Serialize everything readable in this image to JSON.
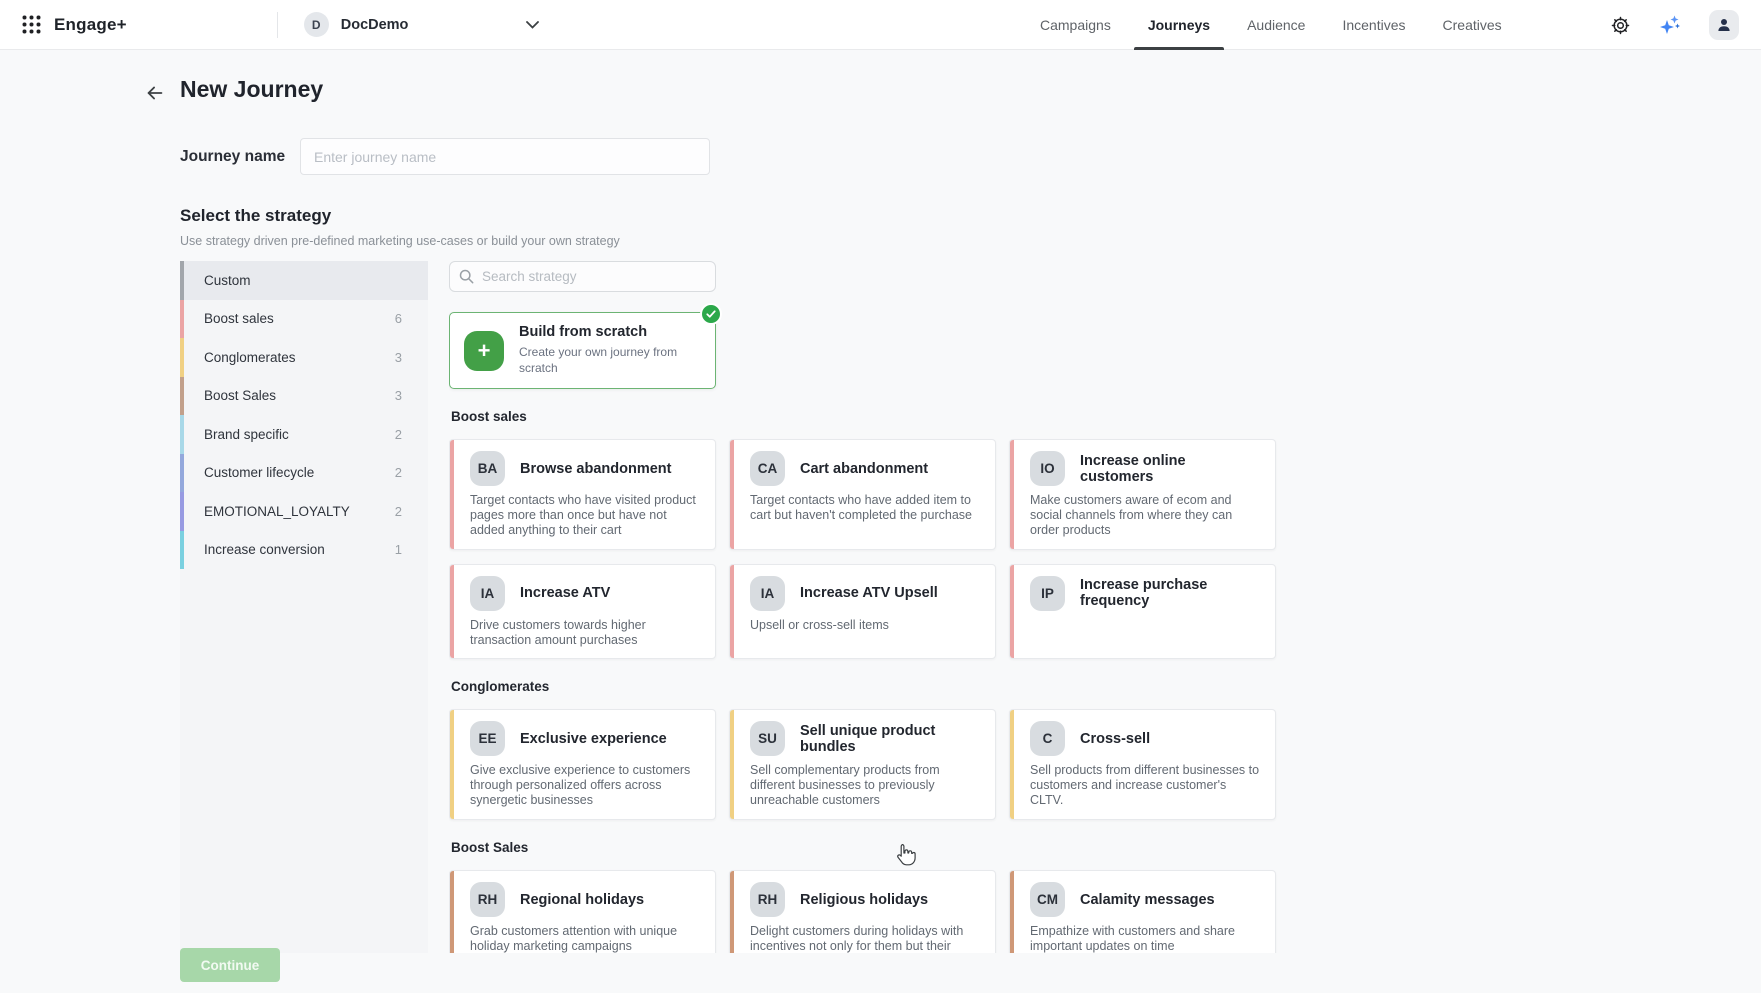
{
  "topbar": {
    "logo": "Engage+",
    "workspace": {
      "initial": "D",
      "name": "DocDemo"
    },
    "nav": [
      {
        "label": "Campaigns",
        "active": false
      },
      {
        "label": "Journeys",
        "active": true
      },
      {
        "label": "Audience",
        "active": false
      },
      {
        "label": "Incentives",
        "active": false
      },
      {
        "label": "Creatives",
        "active": false
      }
    ]
  },
  "page": {
    "title": "New Journey",
    "journey_name_label": "Journey name",
    "journey_name_placeholder": "Enter journey name",
    "journey_name_value": "",
    "strategy_heading": "Select the strategy",
    "strategy_subheading": "Use strategy driven pre-defined marketing use-cases or build your own strategy",
    "search_placeholder": "Search strategy",
    "continue_label": "Continue"
  },
  "colors": {
    "selected_green": "#2ba84a",
    "build_icon_green": "#43a047",
    "continue_green": "#a7d7a9",
    "active_tab_underline": "#3c4043",
    "sparkle_blue": "#4285f4"
  },
  "sidebar_categories": [
    {
      "label": "Custom",
      "count": "",
      "accent": "#a2a6ab",
      "selected": true
    },
    {
      "label": "Boost sales",
      "count": "6",
      "accent": "#eba4a4",
      "selected": false
    },
    {
      "label": "Conglomerates",
      "count": "3",
      "accent": "#f0d083",
      "selected": false
    },
    {
      "label": "Boost Sales",
      "count": "3",
      "accent": "#c2a08b",
      "selected": false
    },
    {
      "label": "Brand specific",
      "count": "2",
      "accent": "#a8d8e8",
      "selected": false
    },
    {
      "label": "Customer lifecycle",
      "count": "2",
      "accent": "#93a8dc",
      "selected": false
    },
    {
      "label": "EMOTIONAL_LOYALTY",
      "count": "2",
      "accent": "#979ae2",
      "selected": false
    },
    {
      "label": "Increase conversion",
      "count": "1",
      "accent": "#7ad0e0",
      "selected": false
    }
  ],
  "build_card": {
    "title": "Build from scratch",
    "description": "Create your own journey from scratch",
    "selected": true
  },
  "sections": [
    {
      "heading": "Boost sales",
      "accent": "#eba4a4",
      "cards": [
        {
          "initials": "BA",
          "title": "Browse abandonment",
          "description": "Target contacts who have visited product pages more than once but have not added anything to their cart"
        },
        {
          "initials": "CA",
          "title": "Cart abandonment",
          "description": "Target contacts who have added item to cart but haven't completed the purchase"
        },
        {
          "initials": "IO",
          "title": "Increase online customers",
          "description": "Make customers aware of ecom and social channels from where they can order products"
        },
        {
          "initials": "IA",
          "title": "Increase ATV",
          "description": "Drive customers towards higher transaction amount purchases"
        },
        {
          "initials": "IA",
          "title": "Increase ATV Upsell",
          "description": "Upsell or cross-sell items"
        },
        {
          "initials": "IP",
          "title": "Increase purchase frequency",
          "description": ""
        }
      ]
    },
    {
      "heading": "Conglomerates",
      "accent": "#f0d083",
      "cards": [
        {
          "initials": "EE",
          "title": "Exclusive experience",
          "description": "Give exclusive experience to customers through personalized offers across synergetic businesses"
        },
        {
          "initials": "SU",
          "title": "Sell unique product bundles",
          "description": "Sell complementary products from different businesses to previously unreachable customers"
        },
        {
          "initials": "C",
          "title": "Cross-sell",
          "description": "Sell products from different businesses to customers and increase customer's CLTV."
        }
      ]
    },
    {
      "heading": "Boost Sales",
      "accent": "#cf9877",
      "cards": [
        {
          "initials": "RH",
          "title": "Regional holidays",
          "description": "Grab customers attention with unique holiday marketing campaigns"
        },
        {
          "initials": "RH",
          "title": "Religious holidays",
          "description": "Delight customers during holidays with incentives not only for them but their loved ones too"
        },
        {
          "initials": "CM",
          "title": "Calamity messages",
          "description": "Empathize with customers and share important updates on time"
        }
      ]
    }
  ]
}
